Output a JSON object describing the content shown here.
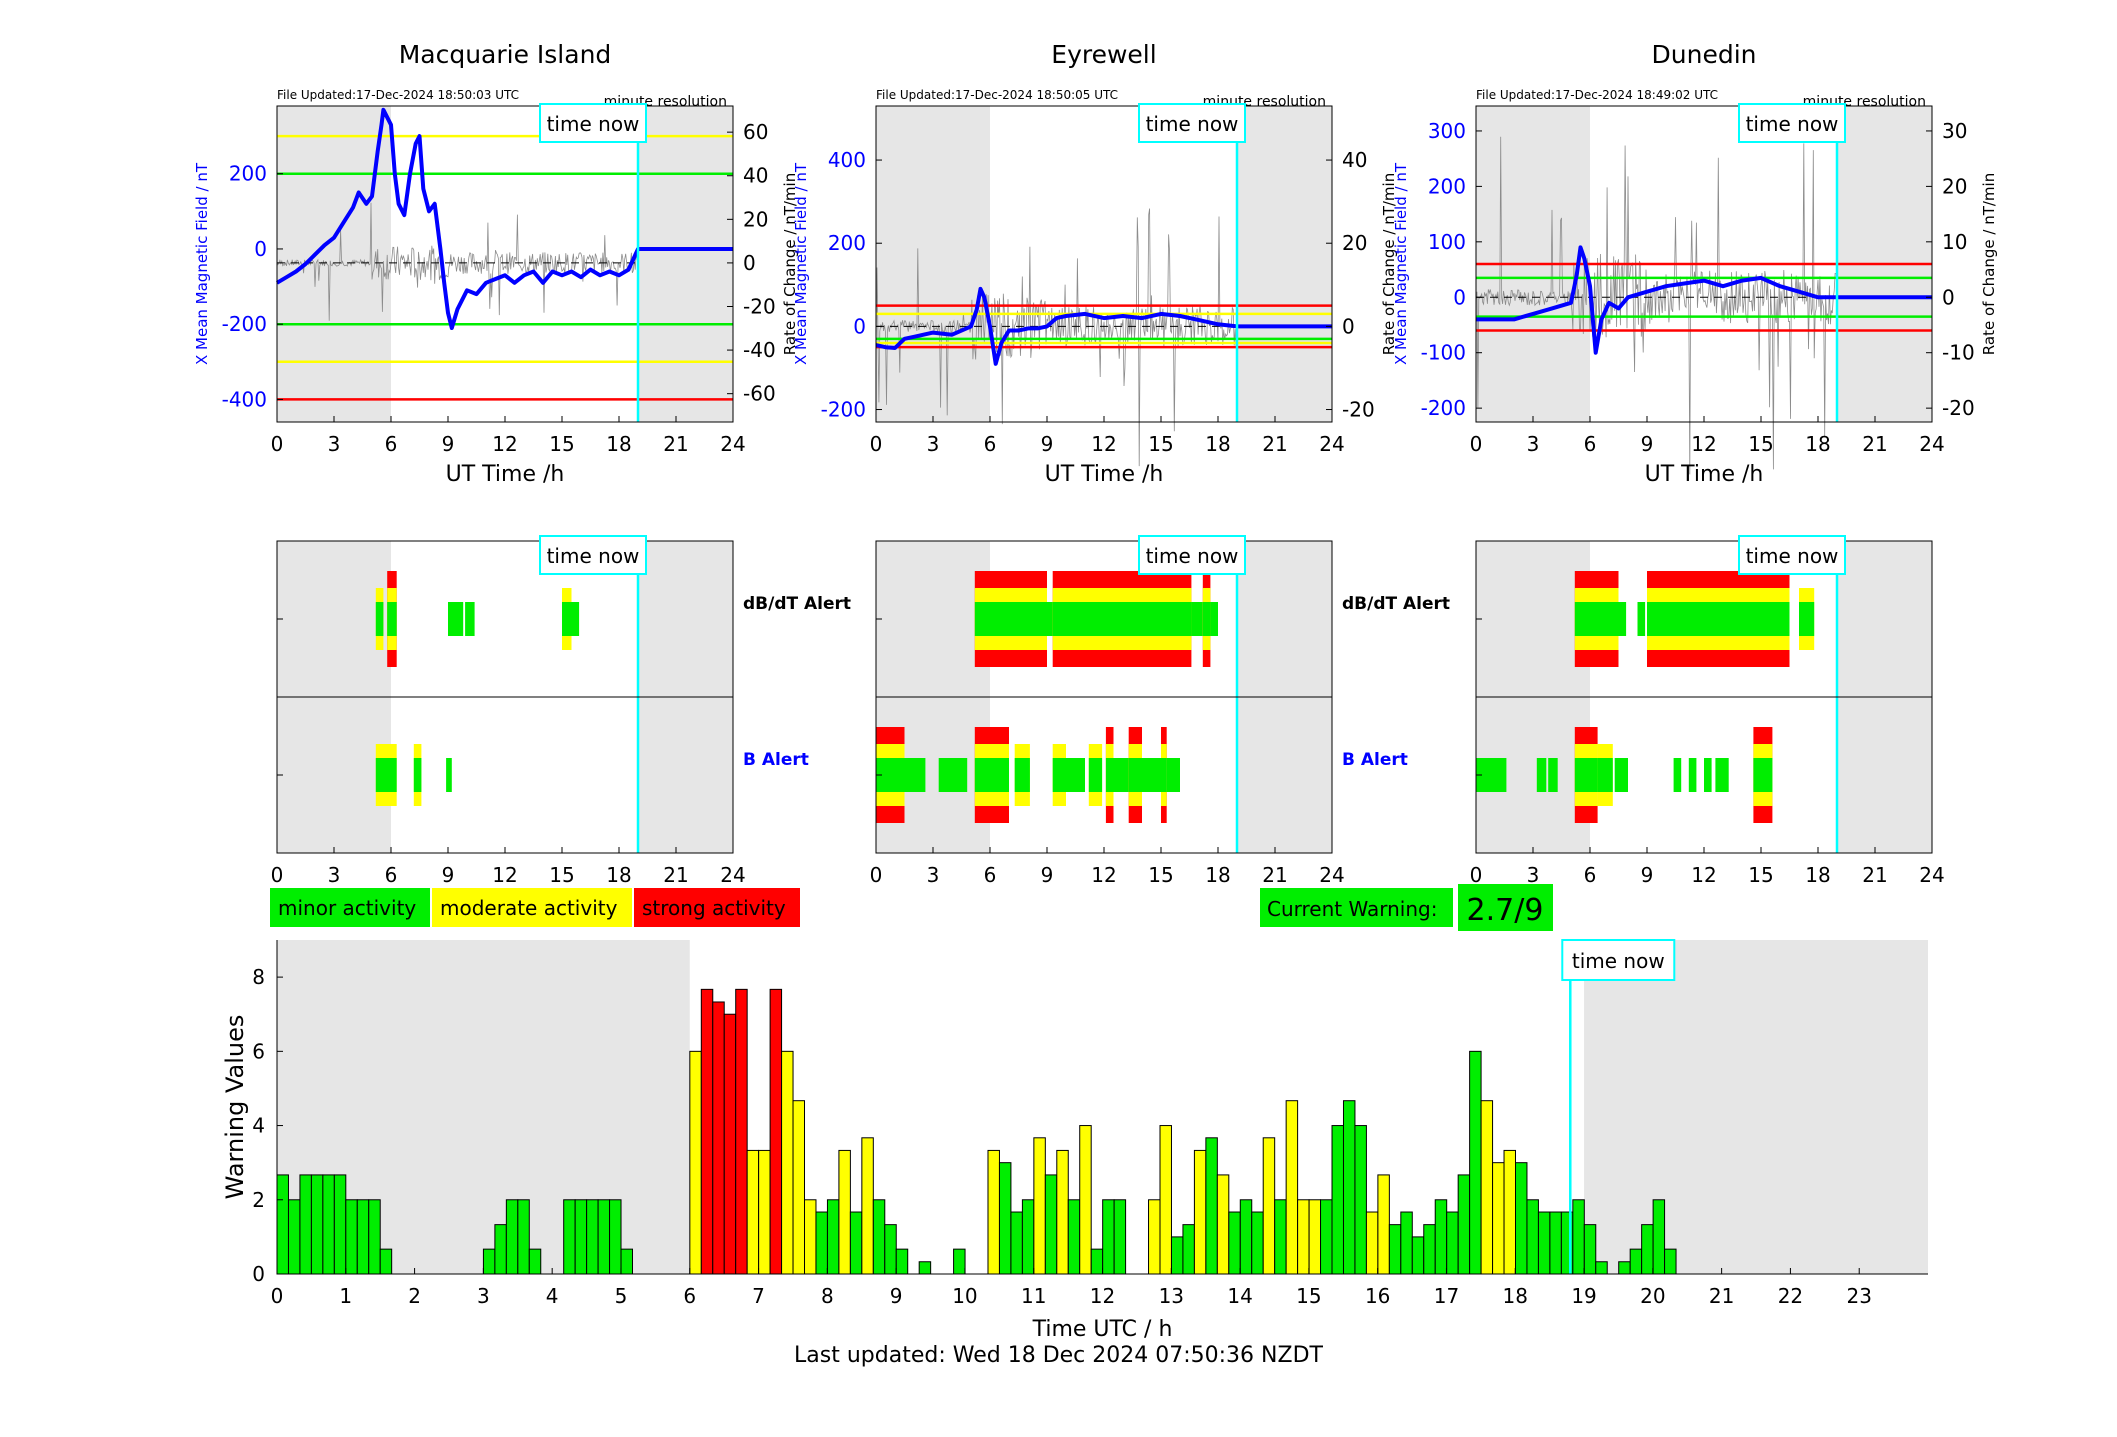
{
  "footer": "Last updated: Wed 18 Dec 2024 07:50:36 NZDT",
  "labels": {
    "time_now": "time now",
    "minute_resolution": "minute resolution",
    "x_axis_top": "UT Time /h",
    "y_left_top": "X Mean Magnetic Field / nT",
    "y_right_top": "Rate of Change / nT/min",
    "dbdt_alert": "dB/dT Alert",
    "b_alert": "B Alert",
    "legend_minor": "minor activity",
    "legend_moderate": "moderate activity",
    "legend_strong": "strong activity",
    "current_warning_label": "Current Warning:",
    "current_warning_value": "2.7/9",
    "bottom_xlabel": "Time UTC / h",
    "bottom_ylabel": "Warning Values"
  },
  "colors": {
    "green": "#00ee00",
    "yellow": "#ffff00",
    "red": "#ff0000",
    "blue": "#0000ff",
    "cyan": "#00ffff",
    "night_shade": "#e6e6e6"
  },
  "chart_data": [
    {
      "type": "line",
      "title": "Macquarie Island",
      "file_updated": "File Updated:17-Dec-2024 18:50:03 UTC",
      "xlabel": "UT Time /h",
      "ylabel": "X Mean Magnetic Field / nT",
      "ylabel_right": "Rate of Change / nT/min",
      "xlim": [
        0,
        24
      ],
      "x_ticks": [
        0,
        3,
        6,
        9,
        12,
        15,
        18,
        21,
        24
      ],
      "ylim": [
        -460,
        380
      ],
      "y_ticks": [
        -400,
        -200,
        0,
        200
      ],
      "y2lim": [
        -73,
        72
      ],
      "y2_ticks": [
        -60,
        -40,
        -20,
        0,
        20,
        40,
        60
      ],
      "night_shade_h": [
        [
          0,
          6
        ],
        [
          19,
          24
        ]
      ],
      "time_now_h": 19,
      "thresholds": [
        {
          "value": 300,
          "color": "yellow"
        },
        {
          "value": 200,
          "color": "green"
        },
        {
          "value": -200,
          "color": "green"
        },
        {
          "value": -300,
          "color": "yellow"
        },
        {
          "value": -400,
          "color": "red"
        }
      ],
      "series": [
        {
          "x": [
            0,
            0.5,
            1,
            1.5,
            2,
            2.5,
            3,
            3.5,
            4,
            4.3,
            4.7,
            5,
            5.3,
            5.5,
            5.6,
            5.8,
            6,
            6.2,
            6.4,
            6.7,
            7,
            7.3,
            7.5,
            7.7,
            8,
            8.3,
            8.6,
            8.8,
            9,
            9.2,
            9.5,
            10,
            10.5,
            11,
            11.5,
            12,
            12.5,
            13,
            13.5,
            14,
            14.5,
            15,
            15.5,
            16,
            16.5,
            17,
            17.5,
            18,
            18.5,
            19,
            24
          ],
          "y": [
            -90,
            -75,
            -60,
            -40,
            -15,
            10,
            30,
            70,
            110,
            150,
            120,
            140,
            260,
            330,
            370,
            350,
            330,
            200,
            120,
            90,
            200,
            280,
            300,
            160,
            100,
            120,
            0,
            -90,
            -170,
            -210,
            -160,
            -110,
            -120,
            -90,
            -80,
            -70,
            -90,
            -70,
            -60,
            -90,
            -60,
            -70,
            -60,
            -75,
            -55,
            -70,
            -60,
            -70,
            -55,
            0,
            0
          ]
        }
      ]
    },
    {
      "type": "line",
      "title": "Eyrewell",
      "file_updated": "File Updated:17-Dec-2024 18:50:05 UTC",
      "xlabel": "UT Time /h",
      "ylabel": "X Mean Magnetic Field / nT",
      "ylabel_right": "Rate of Change / nT/min",
      "xlim": [
        0,
        24
      ],
      "x_ticks": [
        0,
        3,
        6,
        9,
        12,
        15,
        18,
        21,
        24
      ],
      "ylim": [
        -230,
        530
      ],
      "y_ticks": [
        -200,
        0,
        200,
        400
      ],
      "y2lim": [
        -23,
        53
      ],
      "y2_ticks": [
        -20,
        0,
        20,
        40
      ],
      "night_shade_h": [
        [
          0,
          6
        ],
        [
          19,
          24
        ]
      ],
      "time_now_h": 19,
      "thresholds": [
        {
          "value": 50,
          "color": "red"
        },
        {
          "value": 30,
          "color": "yellow"
        },
        {
          "value": -30,
          "color": "green"
        },
        {
          "value": -40,
          "color": "yellow"
        },
        {
          "value": -50,
          "color": "red"
        }
      ],
      "series": [
        {
          "x": [
            0,
            0.5,
            1,
            1.5,
            2,
            3,
            4,
            5,
            5.3,
            5.5,
            5.7,
            6,
            6.3,
            6.6,
            7,
            7.5,
            8,
            8.5,
            9,
            9.5,
            10,
            11,
            12,
            13,
            14,
            15,
            16,
            17,
            18,
            19,
            24
          ],
          "y": [
            -45,
            -50,
            -52,
            -30,
            -25,
            -15,
            -20,
            0,
            40,
            90,
            70,
            0,
            -90,
            -40,
            -10,
            -10,
            -5,
            -5,
            0,
            20,
            25,
            30,
            20,
            25,
            20,
            30,
            25,
            15,
            5,
            0,
            0
          ]
        }
      ]
    },
    {
      "type": "line",
      "title": "Dunedin",
      "file_updated": "File Updated:17-Dec-2024 18:49:02 UTC",
      "xlabel": "UT Time /h",
      "ylabel": "X Mean Magnetic Field / nT",
      "ylabel_right": "Rate of Change / nT/min",
      "xlim": [
        0,
        24
      ],
      "x_ticks": [
        0,
        3,
        6,
        9,
        12,
        15,
        18,
        21,
        24
      ],
      "ylim": [
        -225,
        345
      ],
      "y_ticks": [
        -200,
        -100,
        0,
        100,
        200,
        300
      ],
      "y2lim": [
        -22.5,
        34.5
      ],
      "y2_ticks": [
        -20,
        -10,
        0,
        10,
        20,
        30
      ],
      "night_shade_h": [
        [
          0,
          6
        ],
        [
          19,
          24
        ]
      ],
      "time_now_h": 19,
      "thresholds": [
        {
          "value": 60,
          "color": "red"
        },
        {
          "value": 35,
          "color": "green"
        },
        {
          "value": -35,
          "color": "green"
        },
        {
          "value": -60,
          "color": "red"
        }
      ],
      "series": [
        {
          "x": [
            0,
            1,
            2,
            3,
            4,
            5,
            5.3,
            5.5,
            5.7,
            6,
            6.3,
            6.6,
            7,
            7.5,
            8,
            9,
            10,
            11,
            12,
            13,
            14,
            15,
            16,
            17,
            18,
            19,
            24
          ],
          "y": [
            -40,
            -40,
            -40,
            -30,
            -20,
            -10,
            40,
            90,
            70,
            20,
            -100,
            -40,
            -10,
            -20,
            0,
            10,
            20,
            25,
            30,
            20,
            30,
            35,
            20,
            10,
            0,
            0,
            0
          ]
        }
      ]
    },
    {
      "type": "bar",
      "xlabel": "Time UTC / h",
      "ylabel": "Warning Values",
      "xlim": [
        0,
        24
      ],
      "x_ticks": [
        0,
        1,
        2,
        3,
        4,
        5,
        6,
        7,
        8,
        9,
        10,
        11,
        12,
        13,
        14,
        15,
        16,
        17,
        18,
        19,
        20,
        21,
        22,
        23
      ],
      "ylim": [
        0,
        9
      ],
      "y_ticks": [
        0,
        2,
        4,
        6,
        8
      ],
      "night_shade_h": [
        [
          0,
          6
        ],
        [
          19,
          24
        ]
      ],
      "time_now_h": 18.8,
      "bin_width_h": 0.1667,
      "values": [
        2.67,
        2,
        2.67,
        2.67,
        2.67,
        2.67,
        2,
        2,
        2,
        0.67,
        0,
        0,
        0,
        0,
        0,
        0,
        0,
        0,
        0.67,
        1.33,
        2,
        2,
        0.67,
        0,
        0,
        2,
        2,
        2,
        2,
        2,
        0.67,
        0,
        0,
        0,
        0,
        0,
        6,
        7.67,
        7.33,
        7,
        7.67,
        3.33,
        3.33,
        7.67,
        6,
        4.67,
        2,
        1.67,
        2,
        3.33,
        1.67,
        3.67,
        2,
        1.33,
        0.67,
        0,
        0.33,
        0,
        0,
        0.67,
        0,
        0,
        3.33,
        3,
        1.67,
        2,
        3.67,
        2.67,
        3.33,
        2,
        4,
        0.67,
        2,
        2,
        0,
        0,
        2,
        4,
        1,
        1.33,
        3.33,
        3.67,
        2.67,
        1.67,
        2,
        1.67,
        3.67,
        2,
        4.67,
        2,
        2,
        2,
        4,
        4.67,
        4,
        1.67,
        2.67,
        1.33,
        1.67,
        1,
        1.33,
        2,
        1.67,
        2.67,
        6,
        4.67,
        3,
        3.33,
        3,
        2,
        1.67,
        1.67,
        1.67,
        2,
        1.33,
        0.33,
        0,
        0.33,
        0.67,
        1.33,
        2,
        0.67
      ],
      "value_colors": [
        "g",
        "g",
        "g",
        "g",
        "g",
        "g",
        "g",
        "g",
        "g",
        "g",
        "g",
        "g",
        "g",
        "g",
        "g",
        "g",
        "g",
        "g",
        "g",
        "g",
        "g",
        "g",
        "g",
        "g",
        "g",
        "g",
        "g",
        "g",
        "g",
        "g",
        "g",
        "g",
        "g",
        "g",
        "g",
        "g",
        "y",
        "r",
        "r",
        "r",
        "r",
        "y",
        "y",
        "r",
        "y",
        "y",
        "y",
        "g",
        "g",
        "y",
        "g",
        "y",
        "g",
        "g",
        "g",
        "g",
        "g",
        "g",
        "g",
        "g",
        "g",
        "g",
        "y",
        "g",
        "g",
        "g",
        "y",
        "g",
        "y",
        "g",
        "y",
        "g",
        "g",
        "g",
        "g",
        "g",
        "y",
        "y",
        "g",
        "g",
        "y",
        "g",
        "y",
        "g",
        "g",
        "g",
        "y",
        "g",
        "y",
        "y",
        "y",
        "g",
        "g",
        "g",
        "g",
        "y",
        "y",
        "g",
        "g",
        "g",
        "g",
        "g",
        "g",
        "g",
        "g",
        "y",
        "y",
        "y",
        "g",
        "g",
        "g",
        "g",
        "g",
        "g",
        "g",
        "g",
        "g",
        "g",
        "g",
        "g",
        "g",
        "g",
        "g",
        "g"
      ]
    }
  ],
  "alerts": [
    {
      "station": "Macquarie Island",
      "dbdt": [
        {
          "start": 5.2,
          "end": 5.6,
          "level": 2
        },
        {
          "start": 5.8,
          "end": 6.3,
          "level": 3
        },
        {
          "start": 9.0,
          "end": 9.8,
          "level": 1
        },
        {
          "start": 9.9,
          "end": 10.4,
          "level": 1
        },
        {
          "start": 15.0,
          "end": 15.5,
          "level": 2
        },
        {
          "start": 15.5,
          "end": 15.9,
          "level": 1
        }
      ],
      "b": [
        {
          "start": 5.2,
          "end": 6.3,
          "level": 2
        },
        {
          "start": 7.2,
          "end": 7.6,
          "level": 2
        },
        {
          "start": 8.9,
          "end": 9.2,
          "level": 1
        }
      ]
    },
    {
      "station": "Eyrewell",
      "dbdt": [
        {
          "start": 5.2,
          "end": 9.0,
          "level": 3
        },
        {
          "start": 9.0,
          "end": 9.3,
          "level": 1
        },
        {
          "start": 9.3,
          "end": 16.6,
          "level": 3
        },
        {
          "start": 16.6,
          "end": 17.2,
          "level": 1
        },
        {
          "start": 17.2,
          "end": 17.6,
          "level": 3
        },
        {
          "start": 17.6,
          "end": 18.0,
          "level": 1
        }
      ],
      "b": [
        {
          "start": 0.0,
          "end": 1.5,
          "level": 3
        },
        {
          "start": 1.5,
          "end": 2.6,
          "level": 1
        },
        {
          "start": 3.3,
          "end": 4.8,
          "level": 1
        },
        {
          "start": 5.2,
          "end": 7.0,
          "level": 3
        },
        {
          "start": 7.3,
          "end": 8.1,
          "level": 2
        },
        {
          "start": 9.3,
          "end": 10.0,
          "level": 2
        },
        {
          "start": 10.0,
          "end": 11.0,
          "level": 1
        },
        {
          "start": 11.2,
          "end": 11.9,
          "level": 2
        },
        {
          "start": 12.1,
          "end": 12.5,
          "level": 3
        },
        {
          "start": 12.5,
          "end": 13.3,
          "level": 1
        },
        {
          "start": 13.3,
          "end": 14.0,
          "level": 3
        },
        {
          "start": 14.0,
          "end": 15.0,
          "level": 1
        },
        {
          "start": 15.0,
          "end": 15.3,
          "level": 3
        },
        {
          "start": 15.3,
          "end": 16.0,
          "level": 1
        }
      ]
    },
    {
      "station": "Dunedin",
      "dbdt": [
        {
          "start": 5.2,
          "end": 7.5,
          "level": 3
        },
        {
          "start": 7.5,
          "end": 7.9,
          "level": 1
        },
        {
          "start": 8.5,
          "end": 8.9,
          "level": 1
        },
        {
          "start": 9.0,
          "end": 16.5,
          "level": 3
        },
        {
          "start": 17.0,
          "end": 17.8,
          "level": 2
        }
      ],
      "b": [
        {
          "start": 0.0,
          "end": 1.6,
          "level": 1
        },
        {
          "start": 3.2,
          "end": 3.7,
          "level": 1
        },
        {
          "start": 3.8,
          "end": 4.3,
          "level": 1
        },
        {
          "start": 5.2,
          "end": 6.4,
          "level": 3
        },
        {
          "start": 6.4,
          "end": 7.2,
          "level": 2
        },
        {
          "start": 7.3,
          "end": 8.0,
          "level": 1
        },
        {
          "start": 10.4,
          "end": 10.8,
          "level": 1
        },
        {
          "start": 11.2,
          "end": 11.6,
          "level": 1
        },
        {
          "start": 12.0,
          "end": 12.4,
          "level": 1
        },
        {
          "start": 12.6,
          "end": 13.3,
          "level": 1
        },
        {
          "start": 14.6,
          "end": 15.6,
          "level": 3
        }
      ]
    }
  ]
}
